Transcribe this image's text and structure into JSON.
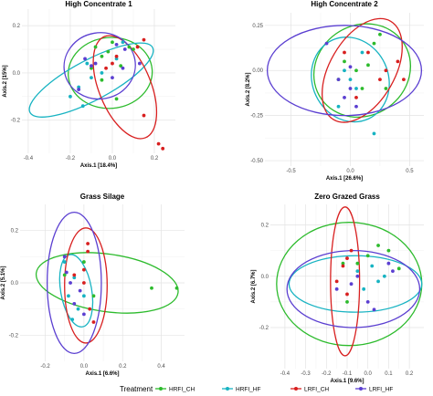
{
  "colors": {
    "HRFI_CH": "#2DBB2D",
    "HRFI_HF": "#17B3C2",
    "LRFI_CH": "#D81F1F",
    "LRFI_HF": "#5B3FD1"
  },
  "legend": {
    "title": "Treatment",
    "placement": "bottom",
    "entries": [
      "HRFI_CH",
      "HRFI_HF",
      "LRFI_CH",
      "LRFI_HF"
    ]
  },
  "chart_data": [
    {
      "type": "scatter",
      "title": "High Concentrate 1",
      "xlabel": "Axis.1  [18.4%]",
      "ylabel": "Axis.2  [15%]",
      "xlim": [
        -0.43,
        0.3
      ],
      "ylim": [
        -0.34,
        0.27
      ],
      "xticks": [
        -0.4,
        -0.2,
        0.0,
        0.2
      ],
      "xtick_labels": [
        "-0.4",
        "-0.2",
        "0.0",
        "0.2"
      ],
      "yticks": [
        -0.2,
        0.0,
        0.2
      ],
      "ytick_labels": [
        "-0.2",
        "0.0",
        "0.2"
      ],
      "grid": true,
      "series": [
        {
          "name": "HRFI_CH",
          "points": [
            [
              0.0,
              0.13
            ],
            [
              0.08,
              0.11
            ],
            [
              -0.05,
              0.07
            ],
            [
              -0.02,
              0.09
            ],
            [
              0.04,
              0.03
            ],
            [
              -0.1,
              0.02
            ],
            [
              -0.05,
              -0.03
            ],
            [
              0.1,
              0.1
            ],
            [
              0.02,
              -0.11
            ],
            [
              -0.08,
              0.11
            ]
          ],
          "ellipse": {
            "cx": -0.01,
            "cy": 0.0,
            "rx": 0.2,
            "ry": 0.15,
            "angle": 5
          }
        },
        {
          "name": "HRFI_HF",
          "points": [
            [
              -0.16,
              -0.06
            ],
            [
              -0.12,
              0.04
            ],
            [
              -0.2,
              -0.1
            ],
            [
              -0.14,
              -0.14
            ],
            [
              0.02,
              0.06
            ],
            [
              -0.05,
              0.0
            ],
            [
              0.05,
              0.13
            ],
            [
              -0.1,
              -0.02
            ]
          ],
          "ellipse": {
            "cx": -0.1,
            "cy": -0.03,
            "rx": 0.33,
            "ry": 0.085,
            "angle": 28
          }
        },
        {
          "name": "LRFI_CH",
          "points": [
            [
              0.22,
              -0.3
            ],
            [
              0.24,
              -0.32
            ],
            [
              0.15,
              -0.18
            ],
            [
              0.12,
              0.11
            ],
            [
              -0.03,
              0.02
            ],
            [
              0.15,
              0.14
            ],
            [
              0.02,
              0.07
            ],
            [
              0.0,
              0.04
            ]
          ],
          "ellipse": {
            "cx": 0.06,
            "cy": -0.06,
            "rx": 0.26,
            "ry": 0.11,
            "angle": -68
          }
        },
        {
          "name": "LRFI_HF",
          "points": [
            [
              -0.08,
              0.04
            ],
            [
              -0.1,
              0.03
            ],
            [
              0.02,
              0.12
            ],
            [
              0.06,
              0.1
            ],
            [
              -0.16,
              -0.07
            ],
            [
              0.0,
              -0.02
            ],
            [
              0.13,
              0.04
            ],
            [
              0.05,
              0.02
            ],
            [
              -0.13,
              0.06
            ]
          ],
          "ellipse": {
            "cx": -0.06,
            "cy": 0.03,
            "rx": 0.17,
            "ry": 0.14,
            "angle": 10
          }
        }
      ]
    },
    {
      "type": "scatter",
      "title": "High Concentrate 2",
      "xlabel": "Axis.1  [26.6%]",
      "ylabel": "Axis.2  [8.2%]",
      "xlim": [
        -0.72,
        0.62
      ],
      "ylim": [
        -0.53,
        0.32
      ],
      "xticks": [
        -0.5,
        0.0,
        0.5
      ],
      "xtick_labels": [
        "-0.5",
        "0.0",
        "0.5"
      ],
      "yticks": [
        -0.5,
        -0.25,
        0.0,
        0.25
      ],
      "ytick_labels": [
        "-0.50",
        "-0.25",
        "0.00",
        "0.25"
      ],
      "grid": true,
      "series": [
        {
          "name": "HRFI_CH",
          "points": [
            [
              0.25,
              0.2
            ],
            [
              0.2,
              0.15
            ],
            [
              0.05,
              0.0
            ],
            [
              -0.1,
              -0.05
            ],
            [
              0.1,
              -0.1
            ],
            [
              0.3,
              -0.1
            ],
            [
              -0.05,
              0.05
            ],
            [
              0.15,
              0.03
            ]
          ],
          "ellipse": {
            "cx": 0.1,
            "cy": 0.0,
            "rx": 0.42,
            "ry": 0.25,
            "angle": 35
          }
        },
        {
          "name": "HRFI_HF",
          "points": [
            [
              -0.05,
              0.0
            ],
            [
              0.05,
              -0.1
            ],
            [
              -0.1,
              -0.2
            ],
            [
              0.2,
              -0.35
            ],
            [
              0.0,
              -0.05
            ],
            [
              0.1,
              0.1
            ]
          ],
          "ellipse": {
            "cx": 0.0,
            "cy": -0.05,
            "rx": 0.32,
            "ry": 0.24,
            "angle": 25
          }
        },
        {
          "name": "LRFI_CH",
          "points": [
            [
              0.3,
              0.0
            ],
            [
              0.4,
              0.05
            ],
            [
              0.15,
              0.1
            ],
            [
              -0.05,
              0.1
            ],
            [
              0.05,
              -0.15
            ],
            [
              0.25,
              -0.05
            ],
            [
              0.45,
              -0.05
            ]
          ],
          "ellipse": {
            "cx": 0.1,
            "cy": 0.0,
            "rx": 0.48,
            "ry": 0.18,
            "angle": 60
          }
        },
        {
          "name": "LRFI_HF",
          "points": [
            [
              -0.2,
              0.15
            ],
            [
              0.0,
              0.02
            ],
            [
              -0.1,
              -0.05
            ],
            [
              0.05,
              -0.2
            ],
            [
              0.0,
              -0.1
            ],
            [
              -0.05,
              -0.15
            ]
          ],
          "ellipse": {
            "cx": -0.05,
            "cy": 0.0,
            "rx": 0.65,
            "ry": 0.25,
            "angle": 0
          }
        }
      ]
    },
    {
      "type": "scatter",
      "title": "Grass Silage",
      "xlabel": "Axis.1  [6.6%]",
      "ylabel": "Axis.2  [5.1%]",
      "xlim": [
        -0.33,
        0.52
      ],
      "ylim": [
        -0.3,
        0.3
      ],
      "xticks": [
        -0.2,
        0.0,
        0.2,
        0.4
      ],
      "xtick_labels": [
        "-0.2",
        "0.0",
        "0.2",
        "0.4"
      ],
      "yticks": [
        -0.2,
        0.0,
        0.2
      ],
      "ytick_labels": [
        "-0.2",
        "0.0",
        "0.2"
      ],
      "grid": true,
      "series": [
        {
          "name": "HRFI_CH",
          "points": [
            [
              0.48,
              -0.02
            ],
            [
              0.35,
              -0.02
            ],
            [
              0.0,
              0.08
            ],
            [
              -0.1,
              0.03
            ],
            [
              0.05,
              -0.05
            ]
          ],
          "ellipse": {
            "cx": 0.12,
            "cy": 0.0,
            "rx": 0.37,
            "ry": 0.11,
            "angle": -8
          }
        },
        {
          "name": "HRFI_HF",
          "points": [
            [
              -0.05,
              0.02
            ],
            [
              -0.08,
              -0.05
            ],
            [
              -0.03,
              -0.1
            ],
            [
              -0.1,
              0.08
            ],
            [
              0.0,
              -0.05
            ],
            [
              -0.06,
              -0.14
            ]
          ],
          "ellipse": {
            "cx": -0.04,
            "cy": -0.03,
            "rx": 0.08,
            "ry": 0.14,
            "angle": 10
          }
        },
        {
          "name": "LRFI_CH",
          "points": [
            [
              0.02,
              0.15
            ],
            [
              0.02,
              0.12
            ],
            [
              -0.05,
              0.03
            ],
            [
              0.0,
              0.0
            ],
            [
              0.03,
              -0.1
            ],
            [
              0.05,
              -0.15
            ],
            [
              0.0,
              0.05
            ]
          ],
          "ellipse": {
            "cx": 0.01,
            "cy": -0.01,
            "rx": 0.11,
            "ry": 0.22,
            "angle": 0
          }
        },
        {
          "name": "LRFI_HF",
          "points": [
            [
              -0.1,
              0.1
            ],
            [
              -0.07,
              0.0
            ],
            [
              -0.05,
              -0.08
            ],
            [
              0.0,
              -0.12
            ],
            [
              -0.02,
              -0.03
            ],
            [
              -0.09,
              0.04
            ]
          ],
          "ellipse": {
            "cx": -0.05,
            "cy": 0.0,
            "rx": 0.14,
            "ry": 0.27,
            "angle": 0
          }
        }
      ]
    },
    {
      "type": "scatter",
      "title": "Zero Grazed Grass",
      "xlabel": "Axis.1  [9.6%]",
      "ylabel": "Axis.2  [6.7%]",
      "xlim": [
        -0.47,
        0.27
      ],
      "ylim": [
        -0.36,
        0.28
      ],
      "xticks": [
        -0.4,
        -0.3,
        -0.2,
        -0.1,
        0.0,
        0.1,
        0.2
      ],
      "xtick_labels": [
        "-0.4",
        "-0.3",
        "-0.2",
        "-0.1",
        "0.0",
        "0.1",
        "0.2"
      ],
      "yticks": [
        -0.2,
        0.0,
        0.2
      ],
      "ytick_labels": [
        "-0.2",
        "0.0",
        "0.2"
      ],
      "grid": true,
      "series": [
        {
          "name": "HRFI_CH",
          "points": [
            [
              0.05,
              0.12
            ],
            [
              0.1,
              0.1
            ],
            [
              -0.05,
              0.05
            ],
            [
              0.15,
              0.03
            ],
            [
              0.0,
              0.08
            ],
            [
              -0.12,
              0.05
            ],
            [
              -0.1,
              -0.1
            ]
          ],
          "ellipse": {
            "cx": -0.09,
            "cy": -0.03,
            "rx": 0.35,
            "ry": 0.24,
            "angle": 0
          }
        },
        {
          "name": "HRFI_HF",
          "points": [
            [
              0.02,
              0.04
            ],
            [
              0.05,
              -0.02
            ],
            [
              0.08,
              0.0
            ],
            [
              -0.05,
              0.02
            ],
            [
              -0.02,
              -0.05
            ]
          ],
          "ellipse": {
            "cx": -0.06,
            "cy": -0.03,
            "rx": 0.32,
            "ry": 0.11,
            "angle": 0
          }
        },
        {
          "name": "LRFI_CH",
          "points": [
            [
              -0.1,
              -0.07
            ],
            [
              -0.12,
              0.04
            ],
            [
              -0.08,
              0.1
            ],
            [
              -0.1,
              0.07
            ],
            [
              -0.15,
              -0.02
            ]
          ],
          "ellipse": {
            "cx": -0.11,
            "cy": -0.02,
            "rx": 0.07,
            "ry": 0.29,
            "angle": 0
          }
        },
        {
          "name": "LRFI_HF",
          "points": [
            [
              -0.05,
              0.0
            ],
            [
              0.0,
              -0.1
            ],
            [
              -0.08,
              -0.03
            ],
            [
              0.1,
              0.05
            ],
            [
              -0.15,
              -0.05
            ],
            [
              0.03,
              -0.13
            ],
            [
              0.12,
              0.02
            ]
          ],
          "ellipse": {
            "cx": -0.07,
            "cy": -0.05,
            "rx": 0.32,
            "ry": 0.15,
            "angle": 0
          }
        }
      ]
    }
  ]
}
